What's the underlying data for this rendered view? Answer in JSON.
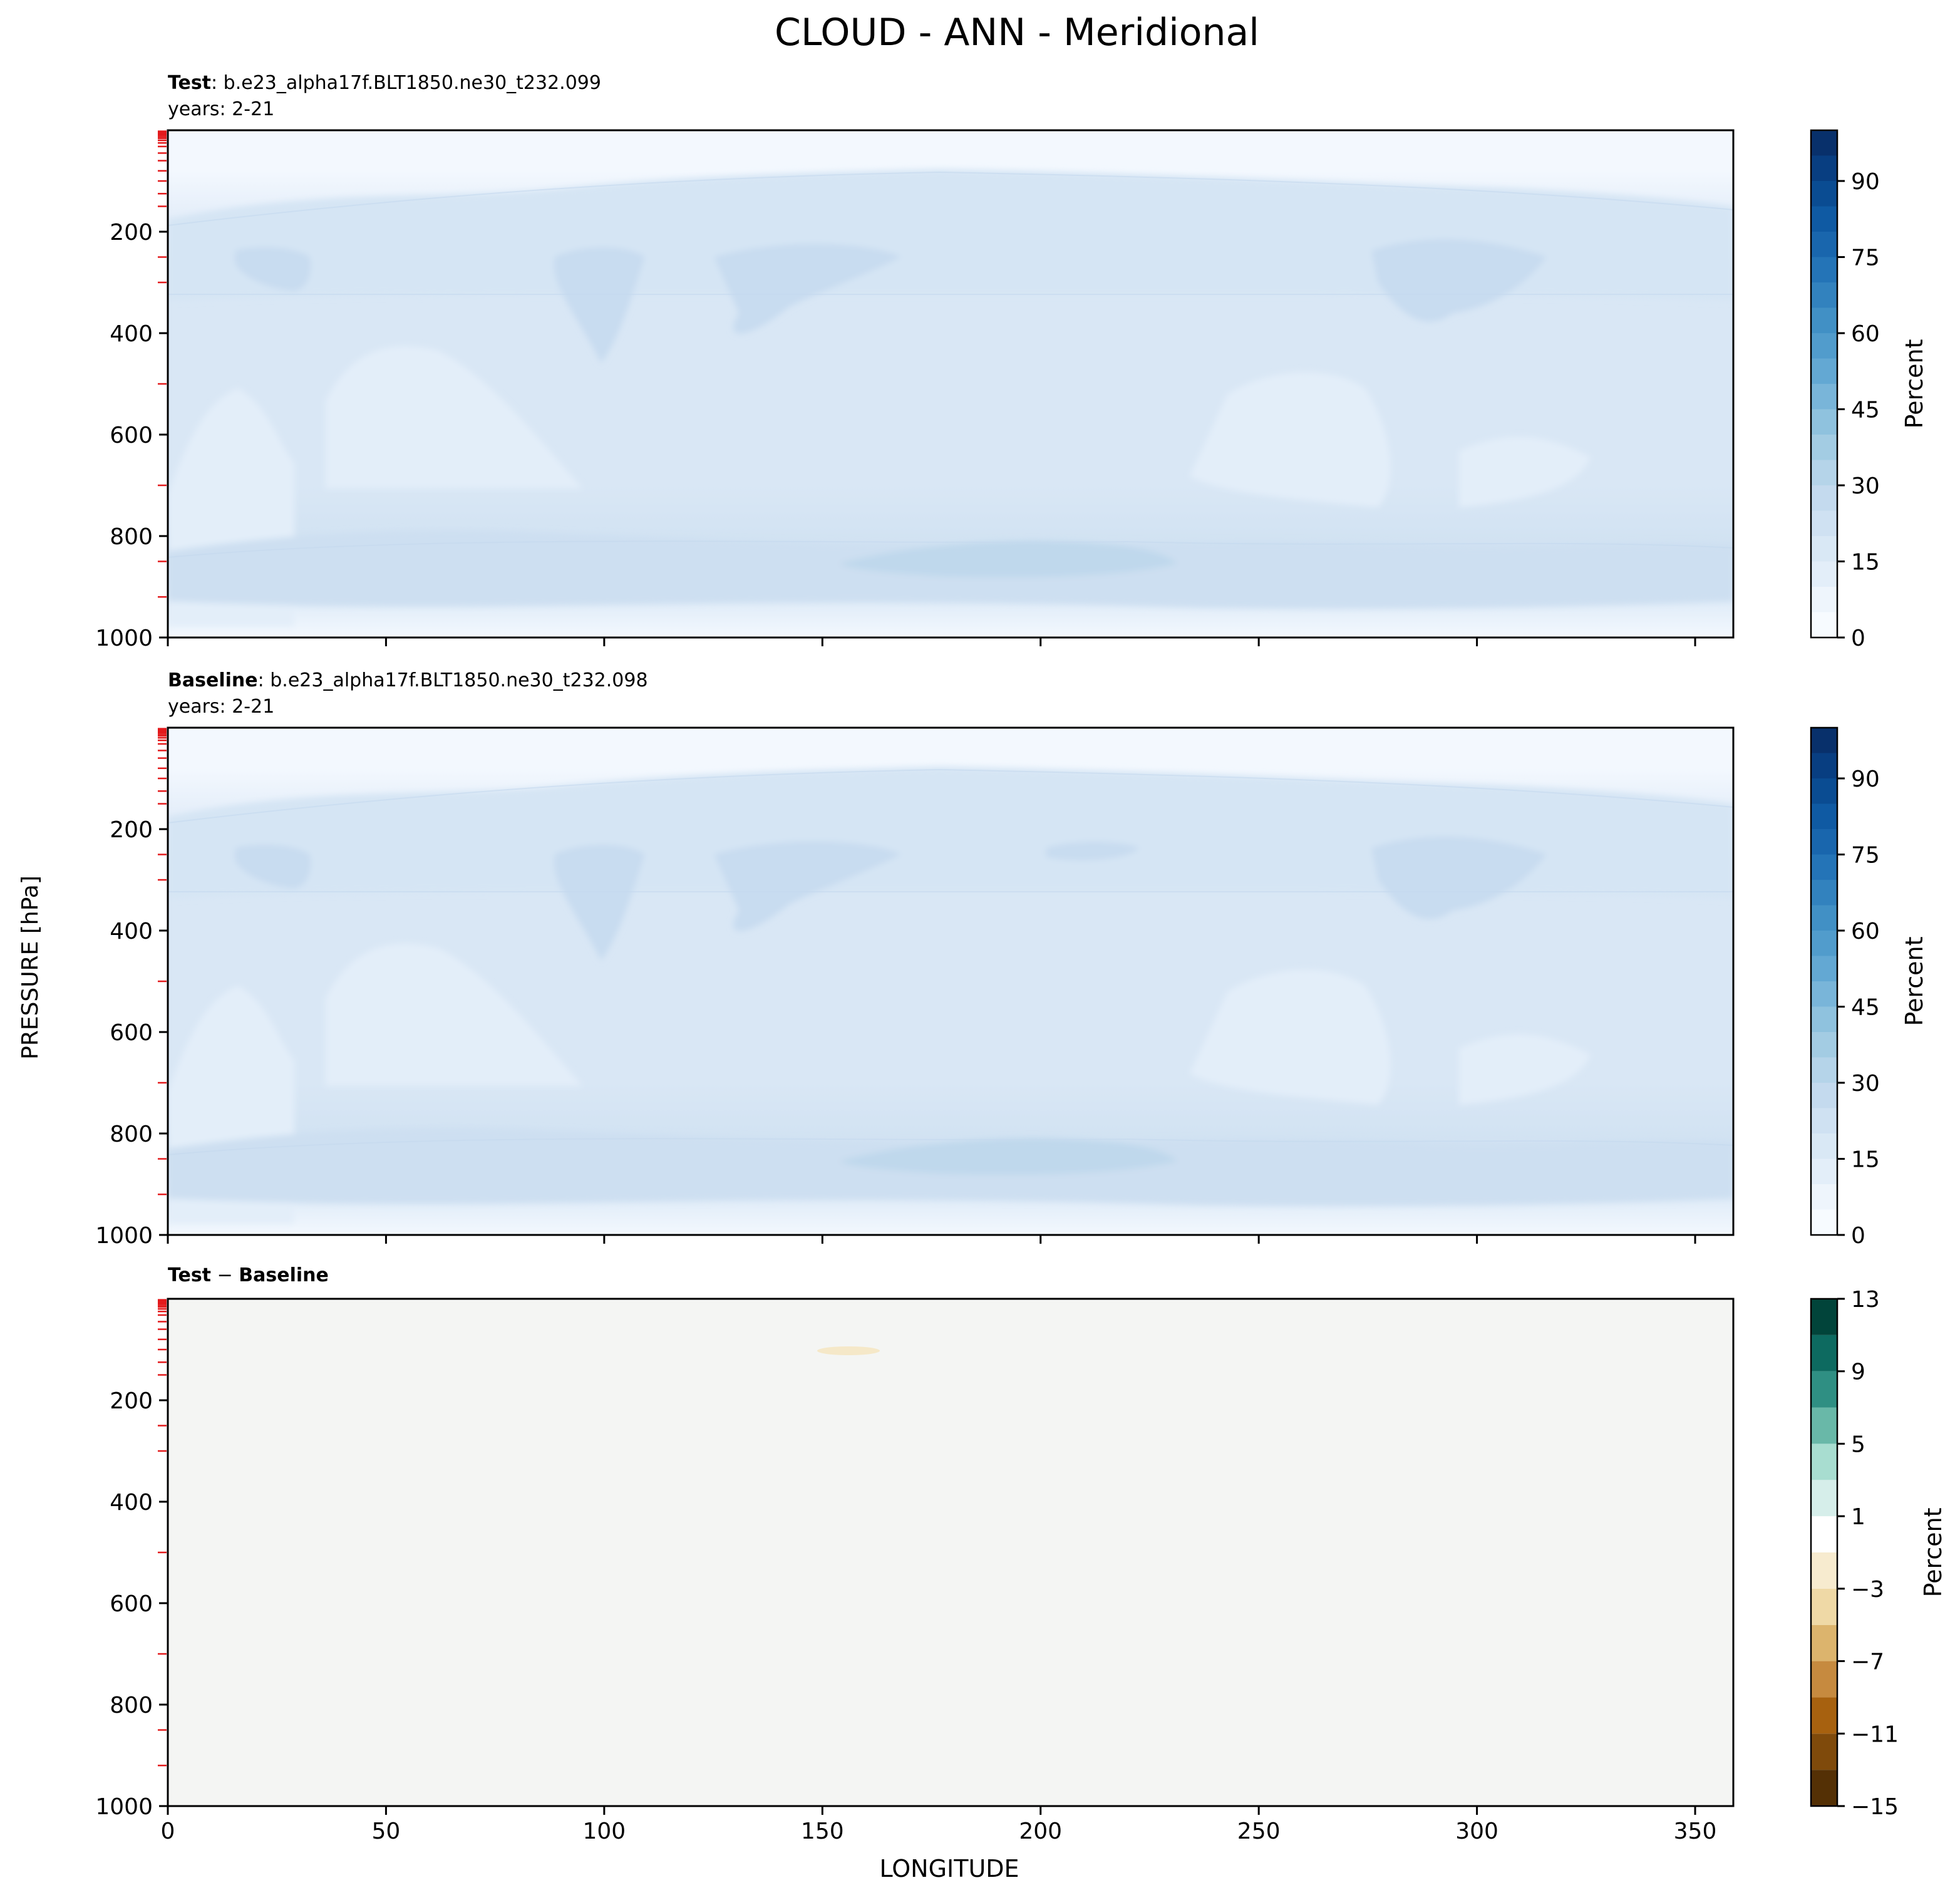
{
  "figure": {
    "title": "CLOUD - ANN - Meridional",
    "ylabel": "PRESSURE [hPa]",
    "xlabel": "LONGITUDE"
  },
  "chart_data": [
    {
      "type": "heatmap",
      "panel": "test",
      "title_bold": "Test",
      "title_rest": ": b.e23_alpha17f.BLT1850.ne30_t232.099",
      "subtitle": "years: 2-21",
      "x_ticks": [
        0,
        50,
        100,
        150,
        200,
        250,
        300,
        350
      ],
      "xlim": [
        0,
        358.75
      ],
      "y_ticks": [
        200,
        400,
        600,
        800,
        1000
      ],
      "ylim": [
        1000,
        0
      ],
      "y_scale": "linear (inverted)",
      "colormap": "Blues",
      "colorbar": {
        "label": "Percent",
        "ticks": [
          0,
          15,
          30,
          45,
          60,
          75,
          90
        ],
        "range": [
          0,
          100
        ],
        "levels": 20
      },
      "contour_summary": "0-5% above ~150 hPa; 10-15% in 200-300 hPa band and 800-950 hPa band; ~20% maxima near 250 hPa (20°,100°,150°,300°) and near 850 hPa (170-230°); 5-10% pockets in 400-700 hPa near 60°, 250°, 320°"
    },
    {
      "type": "heatmap",
      "panel": "baseline",
      "title_bold": "Baseline",
      "title_rest": ": b.e23_alpha17f.BLT1850.ne30_t232.098",
      "subtitle": "years: 2-21",
      "x_ticks": [
        0,
        50,
        100,
        150,
        200,
        250,
        300,
        350
      ],
      "xlim": [
        0,
        358.75
      ],
      "y_ticks": [
        200,
        400,
        600,
        800,
        1000
      ],
      "ylim": [
        1000,
        0
      ],
      "y_scale": "linear (inverted)",
      "colormap": "Blues",
      "colorbar": {
        "label": "Percent",
        "ticks": [
          0,
          15,
          30,
          45,
          60,
          75,
          90
        ],
        "range": [
          0,
          100
        ],
        "levels": 20
      },
      "contour_summary": "nearly identical to Test panel"
    },
    {
      "type": "heatmap",
      "panel": "difference",
      "title_bold": "Test",
      "title_op": " − ",
      "title_bold2": "Baseline",
      "x_ticks": [
        0,
        50,
        100,
        150,
        200,
        250,
        300,
        350
      ],
      "xlim": [
        0,
        358.75
      ],
      "y_ticks": [
        200,
        400,
        600,
        800,
        1000
      ],
      "ylim": [
        1000,
        0
      ],
      "colormap": "BrBG",
      "colorbar": {
        "label": "Percent",
        "ticks": [
          13,
          9,
          5,
          1,
          -3,
          -7,
          -11,
          -15
        ],
        "tick_labels": [
          "13",
          "9",
          "5",
          "1",
          "−3",
          "−7",
          "−11",
          "−15"
        ],
        "range": [
          -15,
          13
        ],
        "boundaries": [
          -15,
          -13,
          -11,
          -9,
          -7,
          -5,
          -3,
          -1,
          1,
          3,
          5,
          7,
          9,
          11,
          13
        ]
      },
      "contour_summary": "near zero everywhere; small -1 to -3 patch near 155°, 100 hPa"
    }
  ]
}
